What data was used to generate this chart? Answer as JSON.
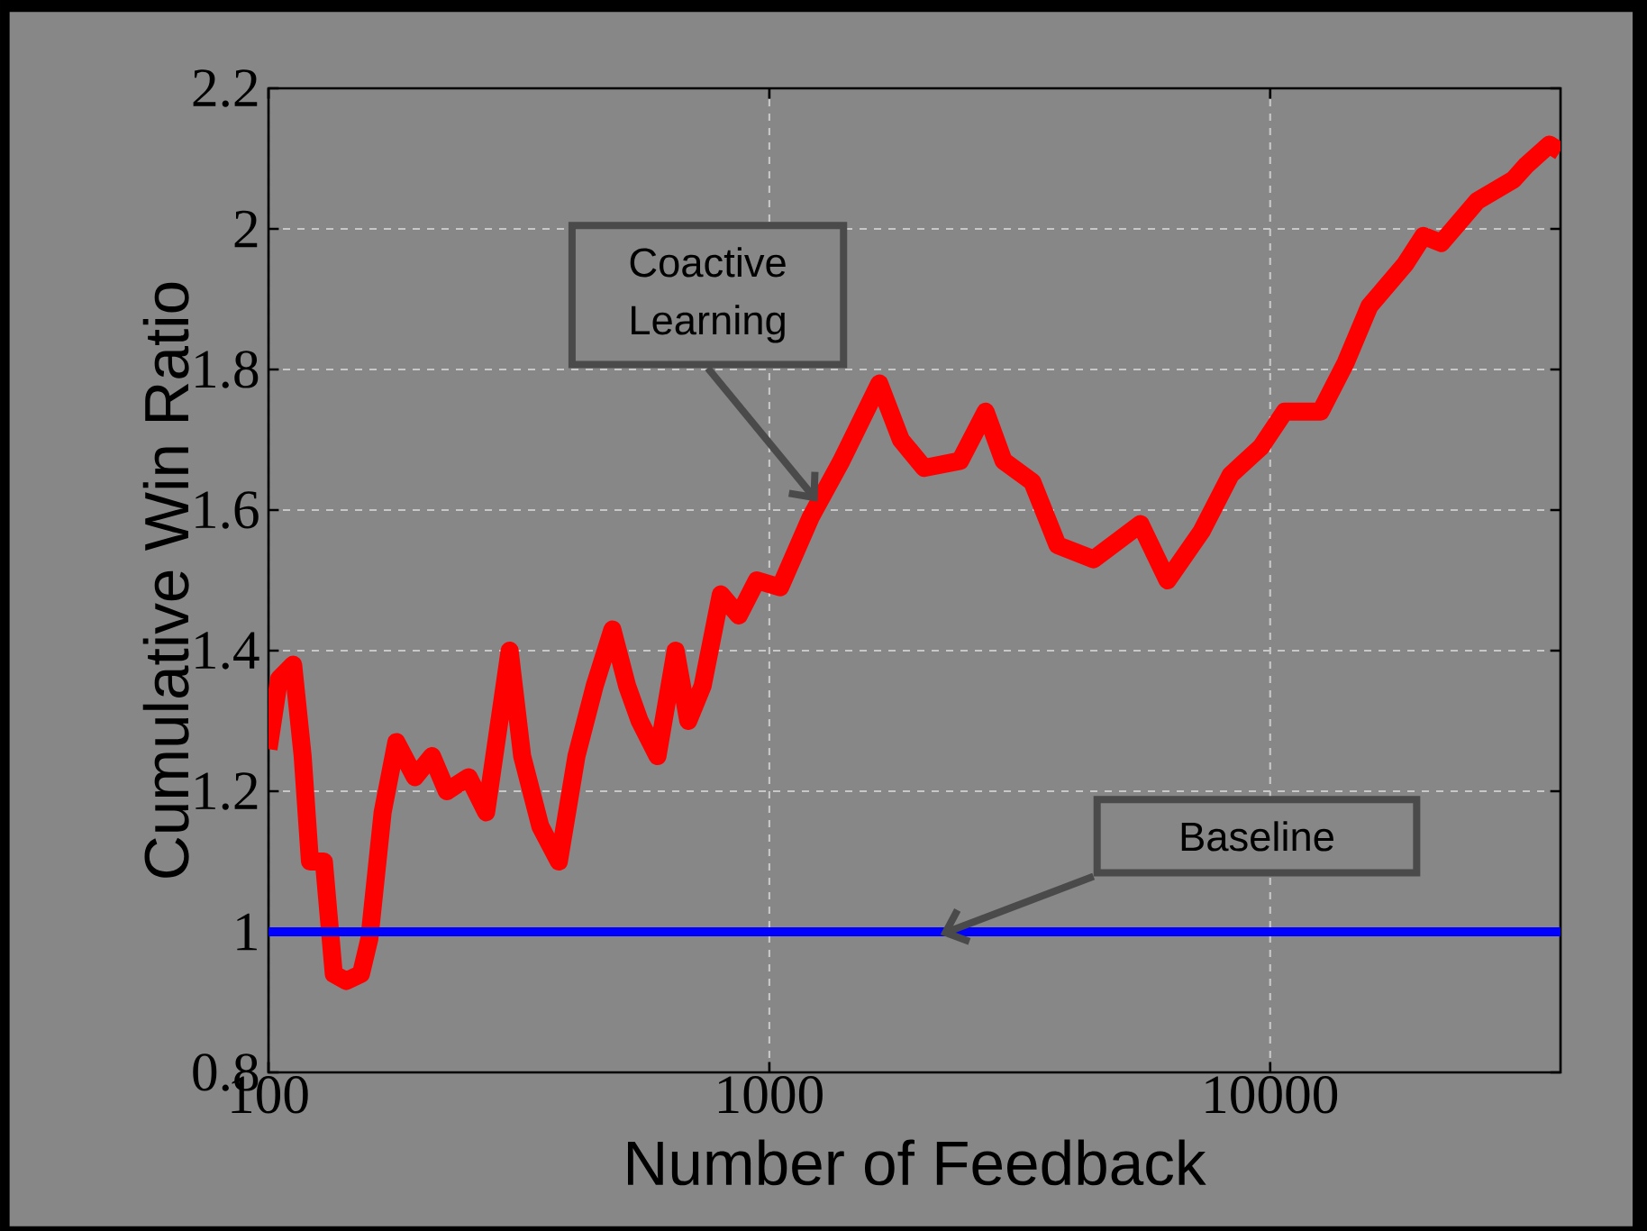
{
  "chart_data": {
    "type": "line",
    "xlabel": "Number of Feedback",
    "ylabel": "Cumulative Win Ratio",
    "log": "x",
    "grid": true,
    "marker": "none",
    "line_style": "solid",
    "xlim": [
      100,
      38000
    ],
    "xticks": [
      100,
      1000,
      10000
    ],
    "ylim": [
      0.8,
      2.2
    ],
    "yticks": [
      0.8,
      1,
      1.2,
      1.4,
      1.6,
      1.8,
      2,
      2.2
    ],
    "series": [
      {
        "name": "Coactive Learning",
        "color": "#ff0000",
        "x": [
          100,
          105,
          112,
          117,
          121,
          129,
          135,
          143,
          153,
          159,
          169,
          180,
          196,
          212,
          227,
          251,
          272,
          303,
          321,
          349,
          380,
          412,
          448,
          486,
          520,
          551,
          598,
          650,
          689,
          736,
          800,
          869,
          944,
          1051,
          1210,
          1393,
          1658,
          1831,
          2037,
          2404,
          2703,
          2935,
          3350,
          3763,
          4442,
          5508,
          6237,
          7300,
          8337,
          9594,
          10690,
          12610,
          14160,
          15780,
          18610,
          20220,
          21970,
          25930,
          30590,
          32420,
          36110,
          37940
        ],
        "values": [
          1.26,
          1.36,
          1.38,
          1.25,
          1.1,
          1.1,
          0.94,
          0.93,
          0.94,
          0.99,
          1.17,
          1.27,
          1.22,
          1.25,
          1.2,
          1.22,
          1.17,
          1.4,
          1.25,
          1.15,
          1.1,
          1.25,
          1.35,
          1.43,
          1.35,
          1.3,
          1.25,
          1.4,
          1.3,
          1.35,
          1.48,
          1.45,
          1.5,
          1.49,
          1.59,
          1.67,
          1.78,
          1.7,
          1.66,
          1.67,
          1.74,
          1.67,
          1.64,
          1.55,
          1.53,
          1.58,
          1.5,
          1.57,
          1.65,
          1.69,
          1.74,
          1.74,
          1.81,
          1.89,
          1.95,
          1.99,
          1.98,
          2.04,
          2.07,
          2.09,
          2.12,
          2.11
        ]
      },
      {
        "name": "Baseline",
        "color": "#0000ff",
        "x": [
          100,
          38000
        ],
        "values": [
          1,
          1
        ]
      }
    ]
  }
}
